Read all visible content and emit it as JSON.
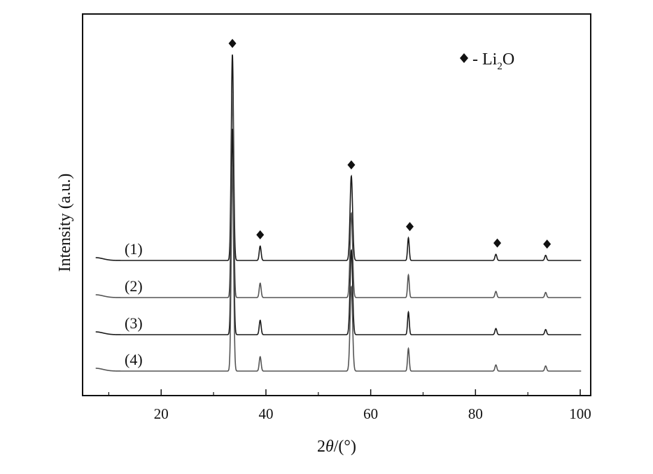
{
  "chart_data": {
    "type": "line",
    "xlabel_prefix": "2",
    "xlabel_var": "θ",
    "xlabel_suffix": "/(°)",
    "ylabel": "Intensity (a.u.)",
    "xlim": [
      5,
      102
    ],
    "x_ticks": [
      20,
      40,
      60,
      80,
      100
    ],
    "x_minor_ticks": [
      10,
      30,
      50,
      70,
      90
    ],
    "legend": {
      "marker": "diamond",
      "dash": "-",
      "text_main": "Li",
      "text_sub": "2",
      "text_end": "O",
      "position": "top-right"
    },
    "peaks": [
      {
        "x": 33.6,
        "marked": true
      },
      {
        "x": 38.9,
        "marked": true
      },
      {
        "x": 56.3,
        "marked": true
      },
      {
        "x": 67.2,
        "marked": true
      },
      {
        "x": 83.9,
        "marked": true
      },
      {
        "x": 93.4,
        "marked": true
      }
    ],
    "series": [
      {
        "label": "(1)",
        "color": "#1a1a1a",
        "relative_intensity": [
          1.0,
          0.07,
          0.41,
          0.11,
          0.03,
          0.025
        ]
      },
      {
        "label": "(2)",
        "color": "#555555",
        "relative_intensity": [
          1.0,
          0.07,
          0.41,
          0.11,
          0.03,
          0.025
        ]
      },
      {
        "label": "(3)",
        "color": "#1a1a1a",
        "relative_intensity": [
          1.0,
          0.07,
          0.41,
          0.11,
          0.03,
          0.025
        ]
      },
      {
        "label": "(4)",
        "color": "#555555",
        "relative_intensity": [
          1.0,
          0.07,
          0.41,
          0.11,
          0.03,
          0.025
        ]
      }
    ]
  }
}
